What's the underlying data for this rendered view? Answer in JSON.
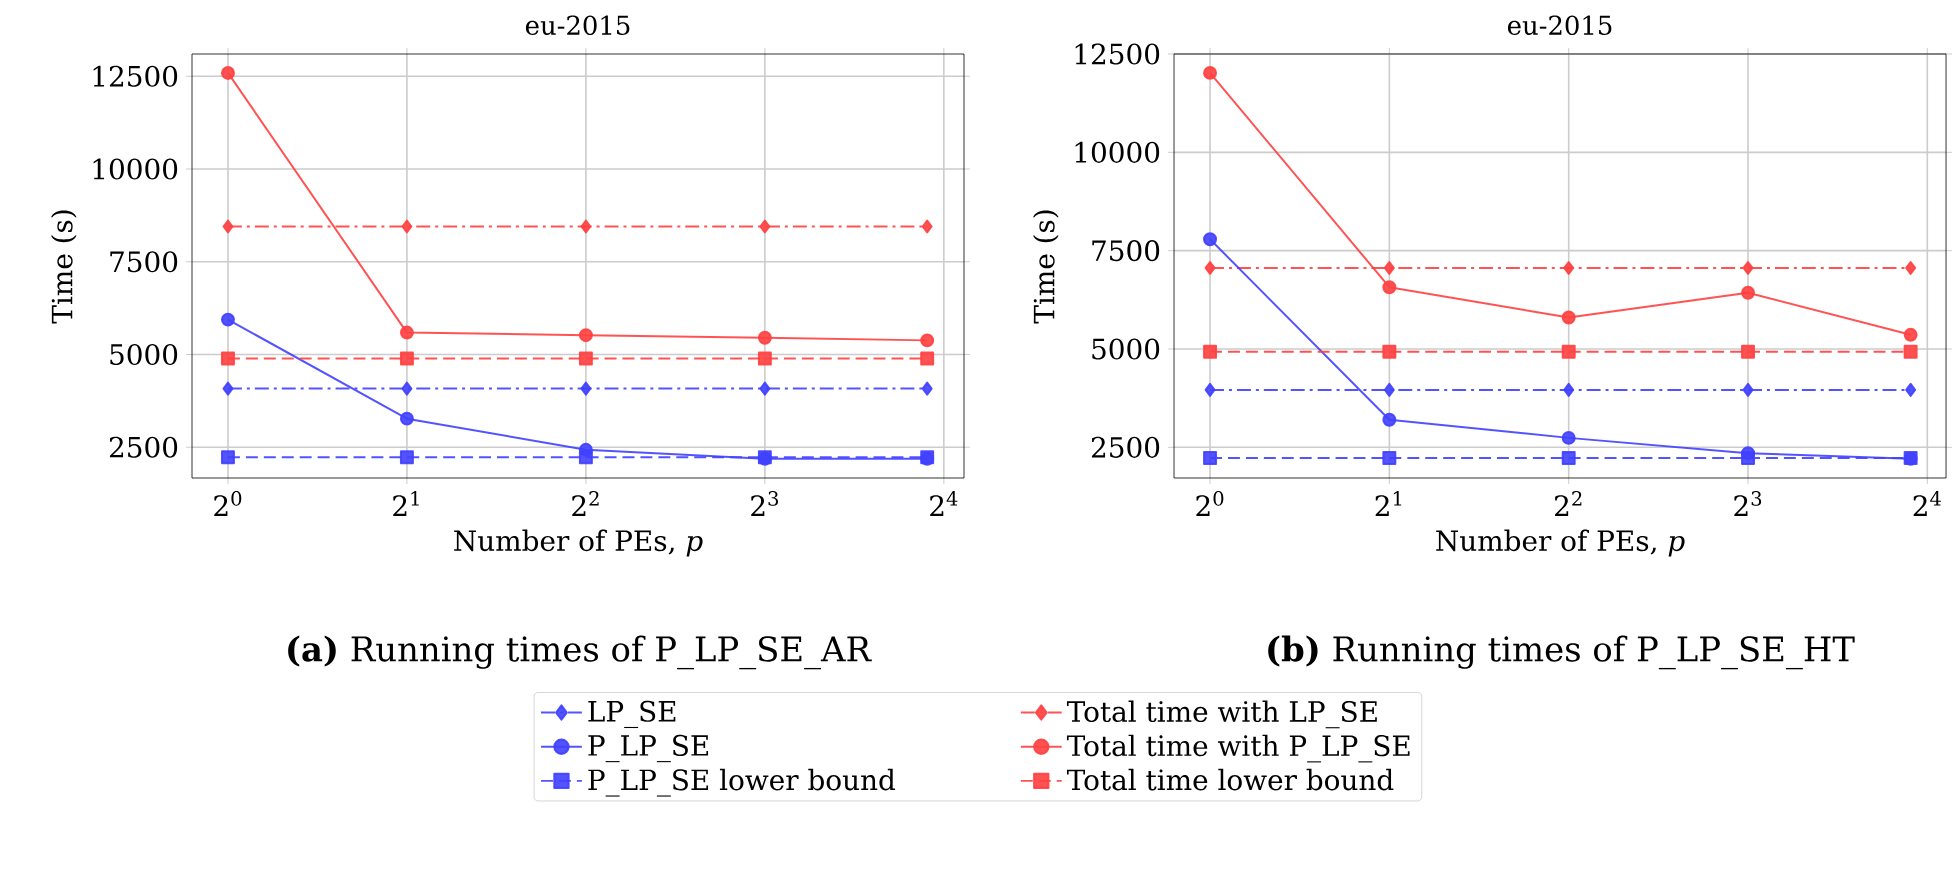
{
  "chart_data": [
    {
      "type": "line",
      "title": "eu-2015",
      "xlabel": "Number of PEs, *p*",
      "ylabel": "Time (s)",
      "annotations": [
        "**(a)** Running times of P_LP_SE_AR"
      ],
      "x": [
        1,
        2,
        4,
        8,
        15
      ],
      "xlim": [
        0.87,
        17.3
      ],
      "ylim": [
        1670,
        13100
      ],
      "xticks": [
        {
          "value": 1,
          "label": "2$^{0}$"
        },
        {
          "value": 2,
          "label": "2$^{1}$"
        },
        {
          "value": 4,
          "label": "2$^{2}$"
        },
        {
          "value": 8,
          "label": "2$^{3}$"
        },
        {
          "value": 16,
          "label": "2$^{4}$"
        }
      ],
      "yticks": [
        2500,
        5000,
        7500,
        10000,
        12500
      ],
      "log": "x",
      "grid": true,
      "legend": "bottom",
      "series": [
        {
          "name": "LP_SE",
          "color": "#4040ff",
          "marker": "diamond",
          "line_style": "dashdot",
          "values": [
            4080,
            4080,
            4080,
            4080,
            4080
          ]
        },
        {
          "name": "Total time with LP_SE",
          "color": "#ff4040",
          "marker": "diamond",
          "line_style": "dashdot",
          "values": [
            8450,
            8450,
            8450,
            8450,
            8450
          ]
        },
        {
          "name": "P_LP_SE",
          "color": "#4040ff",
          "marker": "circle",
          "line_style": "solid",
          "values": [
            5940,
            3270,
            2430,
            2190,
            2190
          ]
        },
        {
          "name": "Total time with P_LP_SE",
          "color": "#ff4040",
          "marker": "circle",
          "line_style": "solid",
          "values": [
            12590,
            5590,
            5520,
            5450,
            5380
          ]
        },
        {
          "name": "P_LP_SE lower bound",
          "color": "#4040ff",
          "marker": "square",
          "line_style": "dashed",
          "values": [
            2230,
            2230,
            2230,
            2230,
            2230
          ]
        },
        {
          "name": "Total time lower bound",
          "color": "#ff4040",
          "marker": "square",
          "line_style": "dashed",
          "values": [
            4890,
            4890,
            4890,
            4890,
            4890
          ]
        }
      ]
    },
    {
      "type": "line",
      "title": "eu-2015",
      "xlabel": "Number of PEs, *p*",
      "ylabel": "Time (s)",
      "annotations": [
        "**(b)** Running times of P_LP_SE_HT"
      ],
      "x": [
        1,
        2,
        4,
        8,
        15
      ],
      "xlim": [
        0.87,
        17.2
      ],
      "ylim": [
        1720,
        12500
      ],
      "xticks": [
        {
          "value": 1,
          "label": "2$^{0}$"
        },
        {
          "value": 2,
          "label": "2$^{1}$"
        },
        {
          "value": 4,
          "label": "2$^{2}$"
        },
        {
          "value": 8,
          "label": "2$^{3}$"
        },
        {
          "value": 16,
          "label": "2$^{4}$"
        }
      ],
      "yticks": [
        2500,
        5000,
        7500,
        10000,
        12500
      ],
      "log": "x",
      "grid": true,
      "series": [
        {
          "color": "#4040ff",
          "marker": "diamond",
          "line_style": "dashdot",
          "values": [
            3960,
            3960,
            3960,
            3960,
            3960
          ]
        },
        {
          "color": "#ff4040",
          "marker": "diamond",
          "line_style": "dashdot",
          "values": [
            7060,
            7060,
            7060,
            7060,
            7060
          ]
        },
        {
          "color": "#4040ff",
          "marker": "circle",
          "line_style": "solid",
          "values": [
            7790,
            3200,
            2740,
            2350,
            2210
          ]
        },
        {
          "color": "#ff4040",
          "marker": "circle",
          "line_style": "solid",
          "values": [
            12020,
            6570,
            5800,
            6430,
            5360
          ]
        },
        {
          "color": "#4040ff",
          "marker": "square",
          "line_style": "dashed",
          "values": [
            2230,
            2230,
            2230,
            2230,
            2230
          ]
        },
        {
          "color": "#ff4040",
          "marker": "square",
          "line_style": "dashed",
          "values": [
            4930,
            4930,
            4930,
            4930,
            4930
          ]
        }
      ]
    }
  ]
}
